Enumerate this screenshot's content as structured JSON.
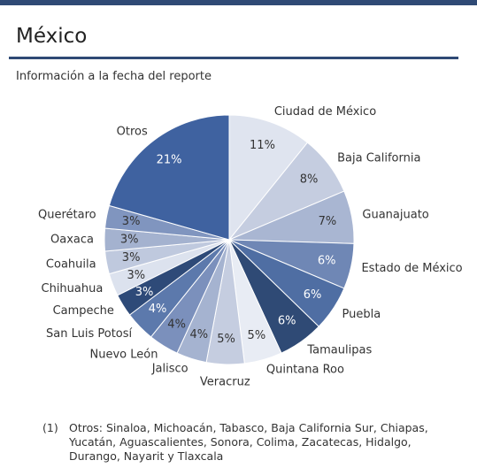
{
  "header": {
    "title": "México"
  },
  "chart_data": {
    "type": "pie",
    "subtitle": "Información a la fecha del reporte",
    "categories": [
      "Ciudad de México",
      "Baja California",
      "Guanajuato",
      "Estado de México",
      "Puebla",
      "Tamaulipas",
      "Quintana Roo",
      "Veracruz",
      "Jalisco",
      "Nuevo León",
      "San Luis Potosí",
      "Campeche",
      "Chihuahua",
      "Coahuila",
      "Oaxaca",
      "Querétaro",
      "Otros"
    ],
    "values": [
      11,
      8,
      7,
      6,
      6,
      6,
      5,
      5,
      4,
      4,
      4,
      3,
      3,
      3,
      3,
      3,
      21
    ],
    "value_labels": [
      "11%",
      "8%",
      "7%",
      "6%",
      "6%",
      "6%",
      "5%",
      "5%",
      "4%",
      "4%",
      "4%",
      "3%",
      "3%",
      "3%",
      "3%",
      "3%",
      "21%"
    ],
    "colors": [
      "#dfe4ef",
      "#c5cde0",
      "#a9b6d2",
      "#6f87b5",
      "#4f6ea3",
      "#2f4a75",
      "#e8ecf4",
      "#c5cde0",
      "#a5b3d0",
      "#7b90bc",
      "#5c79ac",
      "#2e4a78",
      "#dce2ee",
      "#bfc9de",
      "#a4b2cf",
      "#8095bf",
      "#3f62a0"
    ],
    "footnote_marker": "(1)",
    "footnote": "Otros: Sinaloa, Michoacán, Tabasco, Baja California Sur, Chiapas, Yucatán, Aguascalientes, Sonora, Colima, Zacatecas, Hidalgo, Durango, Nayarit y Tlaxcala"
  }
}
